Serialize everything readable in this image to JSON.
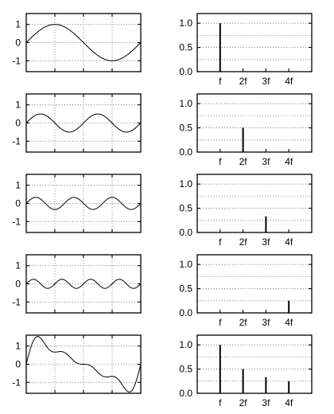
{
  "chart_data": [
    {
      "type": "line",
      "title": "",
      "xlabel": "",
      "ylabel": "",
      "ylim": [
        -1.6,
        1.6
      ],
      "yticks": [
        "1",
        "0",
        "-1"
      ],
      "ytick_values": [
        1,
        0,
        -1
      ],
      "xlim": [
        0,
        1
      ],
      "grid": true,
      "harmonics": [
        {
          "k": 1,
          "amp": 1
        }
      ]
    },
    {
      "type": "bar",
      "title": "",
      "categories": [
        "f",
        "2f",
        "3f",
        "4f"
      ],
      "values": [
        1,
        0,
        0,
        0
      ],
      "ylim": [
        0,
        1.2
      ],
      "yticks": [
        "1.0",
        "0.5",
        "0.0"
      ],
      "ytick_values": [
        1.0,
        0.5,
        0.0
      ],
      "grid": true
    },
    {
      "type": "line",
      "title": "",
      "ylim": [
        -1.6,
        1.6
      ],
      "yticks": [
        "1",
        "0",
        "-1"
      ],
      "ytick_values": [
        1,
        0,
        -1
      ],
      "xlim": [
        0,
        1
      ],
      "grid": true,
      "harmonics": [
        {
          "k": 2,
          "amp": 0.5
        }
      ]
    },
    {
      "type": "bar",
      "title": "",
      "categories": [
        "f",
        "2f",
        "3f",
        "4f"
      ],
      "values": [
        0,
        0.5,
        0,
        0
      ],
      "ylim": [
        0,
        1.2
      ],
      "yticks": [
        "1.0",
        "0.5",
        "0.0"
      ],
      "ytick_values": [
        1.0,
        0.5,
        0.0
      ],
      "grid": true
    },
    {
      "type": "line",
      "title": "",
      "ylim": [
        -1.6,
        1.6
      ],
      "yticks": [
        "1",
        "0",
        "-1"
      ],
      "ytick_values": [
        1,
        0,
        -1
      ],
      "xlim": [
        0,
        1
      ],
      "grid": true,
      "harmonics": [
        {
          "k": 3,
          "amp": 0.333
        }
      ]
    },
    {
      "type": "bar",
      "title": "",
      "categories": [
        "f",
        "2f",
        "3f",
        "4f"
      ],
      "values": [
        0,
        0,
        0.333,
        0
      ],
      "ylim": [
        0,
        1.2
      ],
      "yticks": [
        "1.0",
        "0.5",
        "0.0"
      ],
      "ytick_values": [
        1.0,
        0.5,
        0.0
      ],
      "grid": true
    },
    {
      "type": "line",
      "title": "",
      "ylim": [
        -1.6,
        1.6
      ],
      "yticks": [
        "1",
        "0",
        "-1"
      ],
      "ytick_values": [
        1,
        0,
        -1
      ],
      "xlim": [
        0,
        1
      ],
      "grid": true,
      "harmonics": [
        {
          "k": 4,
          "amp": 0.25
        }
      ]
    },
    {
      "type": "bar",
      "title": "",
      "categories": [
        "f",
        "2f",
        "3f",
        "4f"
      ],
      "values": [
        0,
        0,
        0,
        0.25
      ],
      "ylim": [
        0,
        1.2
      ],
      "yticks": [
        "1.0",
        "0.5",
        "0.0"
      ],
      "ytick_values": [
        1.0,
        0.5,
        0.0
      ],
      "grid": true
    },
    {
      "type": "line",
      "title": "",
      "ylim": [
        -1.6,
        1.6
      ],
      "yticks": [
        "1",
        "0",
        "-1"
      ],
      "ytick_values": [
        1,
        0,
        -1
      ],
      "xlim": [
        0,
        1
      ],
      "grid": true,
      "harmonics": [
        {
          "k": 1,
          "amp": 1
        },
        {
          "k": 2,
          "amp": 0.5
        },
        {
          "k": 3,
          "amp": 0.333
        },
        {
          "k": 4,
          "amp": 0.25
        }
      ]
    },
    {
      "type": "bar",
      "title": "",
      "categories": [
        "f",
        "2f",
        "3f",
        "4f"
      ],
      "values": [
        1,
        0.5,
        0.333,
        0.25
      ],
      "ylim": [
        0,
        1.2
      ],
      "yticks": [
        "1.0",
        "0.5",
        "0.0"
      ],
      "ytick_values": [
        1.0,
        0.5,
        0.0
      ],
      "grid": true
    }
  ]
}
